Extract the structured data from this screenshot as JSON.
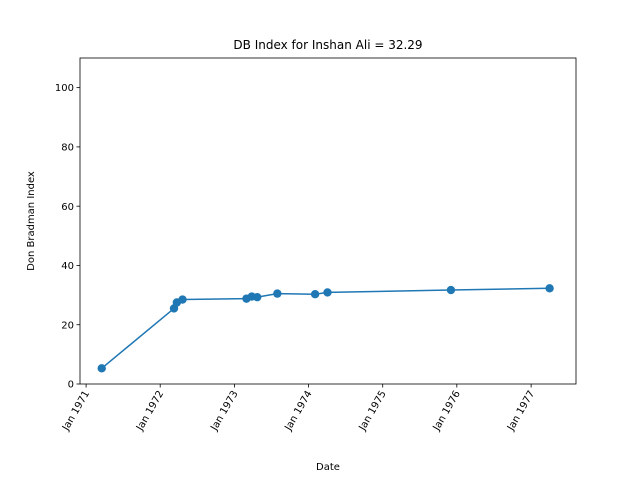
{
  "chart_data": {
    "type": "line",
    "title": "DB Index for Inshan Ali = 32.29",
    "xlabel": "Date",
    "ylabel": "Don Bradman Index",
    "x_axis_type": "date",
    "xlim": [
      "1970-12-02",
      "1977-08-10"
    ],
    "ylim": [
      0,
      110
    ],
    "x_ticks": [
      "1971-01-01",
      "1972-01-01",
      "1973-01-01",
      "1974-01-01",
      "1975-01-01",
      "1976-01-01",
      "1977-01-01"
    ],
    "x_tick_labels": [
      "Jan 1971",
      "Jan 1972",
      "Jan 1973",
      "Jan 1974",
      "Jan 1975",
      "Jan 1976",
      "Jan 1977"
    ],
    "y_ticks": [
      0,
      20,
      40,
      60,
      80,
      100
    ],
    "y_tick_labels": [
      "0",
      "20",
      "40",
      "60",
      "80",
      "100"
    ],
    "grid": false,
    "legend": "none",
    "series": [
      {
        "color": "#1f77b4",
        "marker": "circle",
        "points": [
          {
            "x": "1971-03-19",
            "y": 5.3
          },
          {
            "x": "1972-03-09",
            "y": 25.5
          },
          {
            "x": "1972-03-23",
            "y": 27.5
          },
          {
            "x": "1972-04-20",
            "y": 28.5
          },
          {
            "x": "1973-03-01",
            "y": 28.8
          },
          {
            "x": "1973-03-27",
            "y": 29.5
          },
          {
            "x": "1973-04-23",
            "y": 29.3
          },
          {
            "x": "1973-07-31",
            "y": 30.5
          },
          {
            "x": "1974-02-02",
            "y": 30.3
          },
          {
            "x": "1974-04-04",
            "y": 30.9
          },
          {
            "x": "1975-12-03",
            "y": 31.7
          },
          {
            "x": "1977-04-02",
            "y": 32.29
          }
        ]
      }
    ]
  }
}
